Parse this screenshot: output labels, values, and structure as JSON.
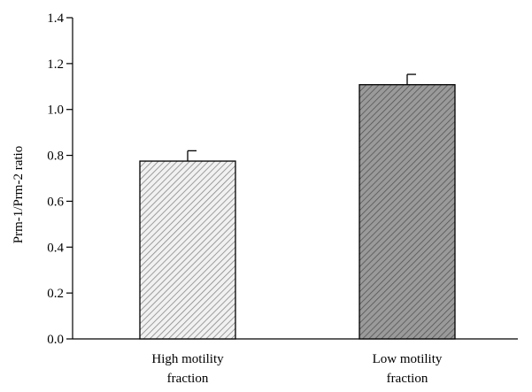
{
  "chart_data": {
    "type": "bar",
    "title": "",
    "xlabel": "",
    "ylabel": "Prm-1/Prm-2 ratio",
    "ylim": [
      0,
      1.4
    ],
    "yticks": [
      "0.0",
      "0.2",
      "0.4",
      "0.6",
      "0.8",
      "1.0",
      "1.2",
      "1.4"
    ],
    "categories": [
      [
        "High motility",
        "fraction"
      ],
      [
        "Low motility",
        "fraction"
      ]
    ],
    "values": [
      0.775,
      1.108
    ],
    "error": [
      0.045,
      0.045
    ],
    "grid": false,
    "bar_fills": [
      "#f1f1f1",
      "#9a9a9a"
    ],
    "hatch_colors": [
      "#888888",
      "#555555"
    ]
  }
}
